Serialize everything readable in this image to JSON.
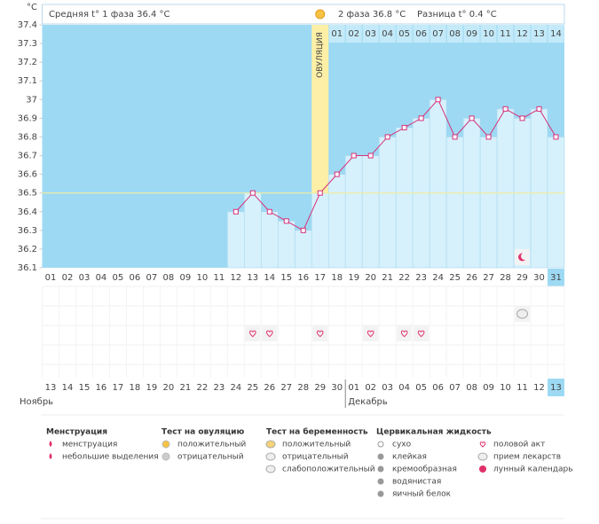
{
  "chart_data": {
    "type": "line",
    "y_unit": "°C",
    "phase1": "Средняя t° 1 фаза 36.4 °C",
    "phase2": "2 фаза 36.8 °C",
    "difference": "Разница t° 0.4 °C",
    "ovulation_label": "ОВУЛЯЦИЯ",
    "ovulation_index": 16,
    "ylim": [
      36.1,
      37.4
    ],
    "yticks": [
      36.1,
      36.2,
      36.3,
      36.4,
      36.5,
      36.6,
      36.7,
      36.8,
      36.9,
      37,
      37.1,
      37.2,
      37.3,
      37.4
    ],
    "coverline": 36.5,
    "categories": [
      "01",
      "02",
      "03",
      "04",
      "05",
      "06",
      "07",
      "08",
      "09",
      "10",
      "11",
      "12",
      "13",
      "14",
      "15",
      "16",
      "17",
      "18",
      "19",
      "20",
      "21",
      "22",
      "23",
      "24",
      "25",
      "26",
      "27",
      "28",
      "29",
      "30",
      "31"
    ],
    "luteal_days": [
      "01",
      "02",
      "03",
      "04",
      "05",
      "06",
      "07",
      "08",
      "09",
      "10",
      "11",
      "12",
      "13",
      "14"
    ],
    "series": [
      {
        "name": "t°",
        "color": "#d6317a",
        "values": [
          null,
          null,
          null,
          null,
          null,
          null,
          null,
          null,
          null,
          null,
          null,
          36.4,
          36.5,
          36.4,
          36.35,
          36.3,
          36.5,
          36.6,
          36.7,
          36.7,
          36.8,
          36.85,
          36.9,
          37,
          36.8,
          36.9,
          36.8,
          36.95,
          36.9,
          36.95,
          36.8
        ]
      }
    ],
    "dates": [
      "13",
      "14",
      "15",
      "16",
      "17",
      "18",
      "19",
      "20",
      "21",
      "22",
      "23",
      "24",
      "25",
      "26",
      "27",
      "28",
      "29",
      "30",
      "01",
      "02",
      "03",
      "04",
      "05",
      "06",
      "07",
      "08",
      "09",
      "10",
      "11",
      "12",
      "13"
    ],
    "red_dates": [
      3,
      4,
      10,
      11,
      17,
      18,
      24,
      25
    ],
    "months": [
      "Ноябрь",
      "Декабрь"
    ],
    "month_start_index": 18,
    "markers": {
      "moon": [
        28
      ],
      "pill": [
        28
      ],
      "hearts": [
        12,
        13,
        16,
        19,
        21,
        22
      ]
    },
    "legend": [
      {
        "title": "Менструация",
        "items": [
          "менструация",
          "небольшие выделения"
        ]
      },
      {
        "title": "Тест на овуляцию",
        "items": [
          "положительный",
          "отрицательный"
        ]
      },
      {
        "title": "Тест на беременность",
        "items": [
          "положительный",
          "отрицательный",
          "слабоположительный"
        ]
      },
      {
        "title": "Цервикальная жидкость",
        "items": [
          "сухо",
          "клейкая",
          "кремообразная",
          "водянистая",
          "яичный белок"
        ]
      }
    ],
    "legend_extra": [
      "половой акт",
      "прием лекарств",
      "лунный календарь"
    ]
  }
}
